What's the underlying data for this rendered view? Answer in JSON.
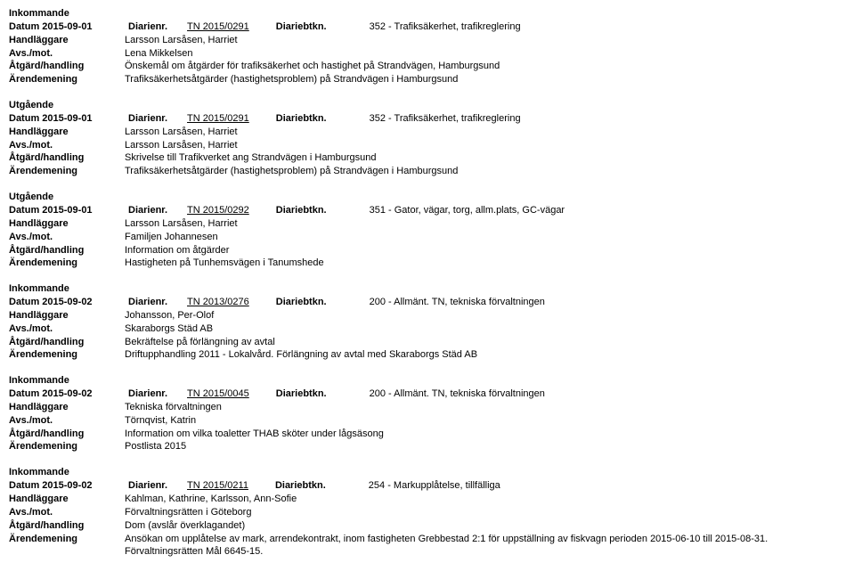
{
  "labels": {
    "direction_in": "Inkommande",
    "direction_out": "Utgående",
    "datum": "Datum",
    "diarienr": "Diarienr.",
    "diariebtkn": "Diariebtkn.",
    "handlaggare": "Handläggare",
    "avsmot": "Avs./mot.",
    "atgard": "Åtgärd/handling",
    "arendemening": "Ärendemening"
  },
  "entries": [
    {
      "direction": "Inkommande",
      "datum": "2015-09-01",
      "diarienr": "TN 2015/0291",
      "diariebtkn": "352 - Trafiksäkerhet, trafikreglering",
      "handlaggare": "Larsson Larsåsen, Harriet",
      "avsmot": "Lena Mikkelsen",
      "atgard": "Önskemål om åtgärder för trafiksäkerhet och hastighet på Strandvägen, Hamburgsund",
      "arendemening": "Trafiksäkerhetsåtgärder (hastighetsproblem) på Strandvägen i Hamburgsund"
    },
    {
      "direction": "Utgående",
      "datum": "2015-09-01",
      "diarienr": "TN 2015/0291",
      "diariebtkn": "352 - Trafiksäkerhet, trafikreglering",
      "handlaggare": "Larsson Larsåsen, Harriet",
      "avsmot": "Larsson Larsåsen, Harriet",
      "atgard": "Skrivelse till Trafikverket ang Strandvägen i Hamburgsund",
      "arendemening": "Trafiksäkerhetsåtgärder (hastighetsproblem) på Strandvägen i Hamburgsund"
    },
    {
      "direction": "Utgående",
      "datum": "2015-09-01",
      "diarienr": "TN 2015/0292",
      "diariebtkn": "351 - Gator, vägar, torg, allm.plats, GC-vägar",
      "handlaggare": "Larsson Larsåsen, Harriet",
      "avsmot": "Familjen Johannesen",
      "atgard": "Information om åtgärder",
      "arendemening": "Hastigheten på Tunhemsvägen i Tanumshede"
    },
    {
      "direction": "Inkommande",
      "datum": "2015-09-02",
      "diarienr": "TN 2013/0276",
      "diariebtkn": "200 - Allmänt. TN, tekniska förvaltningen",
      "handlaggare": "Johansson, Per-Olof",
      "avsmot": "Skaraborgs Städ AB",
      "atgard": "Bekräftelse på förlängning av avtal",
      "arendemening": "Driftupphandling 2011 - Lokalvård. Förlängning av avtal med Skaraborgs Städ AB"
    },
    {
      "direction": "Inkommande",
      "datum": "2015-09-02",
      "diarienr": "TN 2015/0045",
      "diariebtkn": "200 - Allmänt. TN, tekniska förvaltningen",
      "handlaggare": "Tekniska förvaltningen",
      "avsmot": "Törnqvist, Katrin",
      "atgard": "Information om vilka toaletter THAB sköter under lågsäsong",
      "arendemening": "Postlista 2015"
    },
    {
      "direction": "Inkommande",
      "datum": "2015-09-02",
      "diarienr": "TN 2015/0211",
      "diariebtkn": "254 - Markupplåtelse, tillfälliga",
      "handlaggare": "Kahlman, Kathrine, Karlsson, Ann-Sofie",
      "avsmot": "Förvaltningsrätten i Göteborg",
      "atgard": "Dom (avslår överklagandet)",
      "arendemening": "Ansökan om upplåtelse av mark, arrendekontrakt, inom fastigheten Grebbestad 2:1 för uppställning av fiskvagn perioden 2015-06-10 till 2015-08-31. Förvaltningsrätten Mål 6645-15."
    }
  ]
}
